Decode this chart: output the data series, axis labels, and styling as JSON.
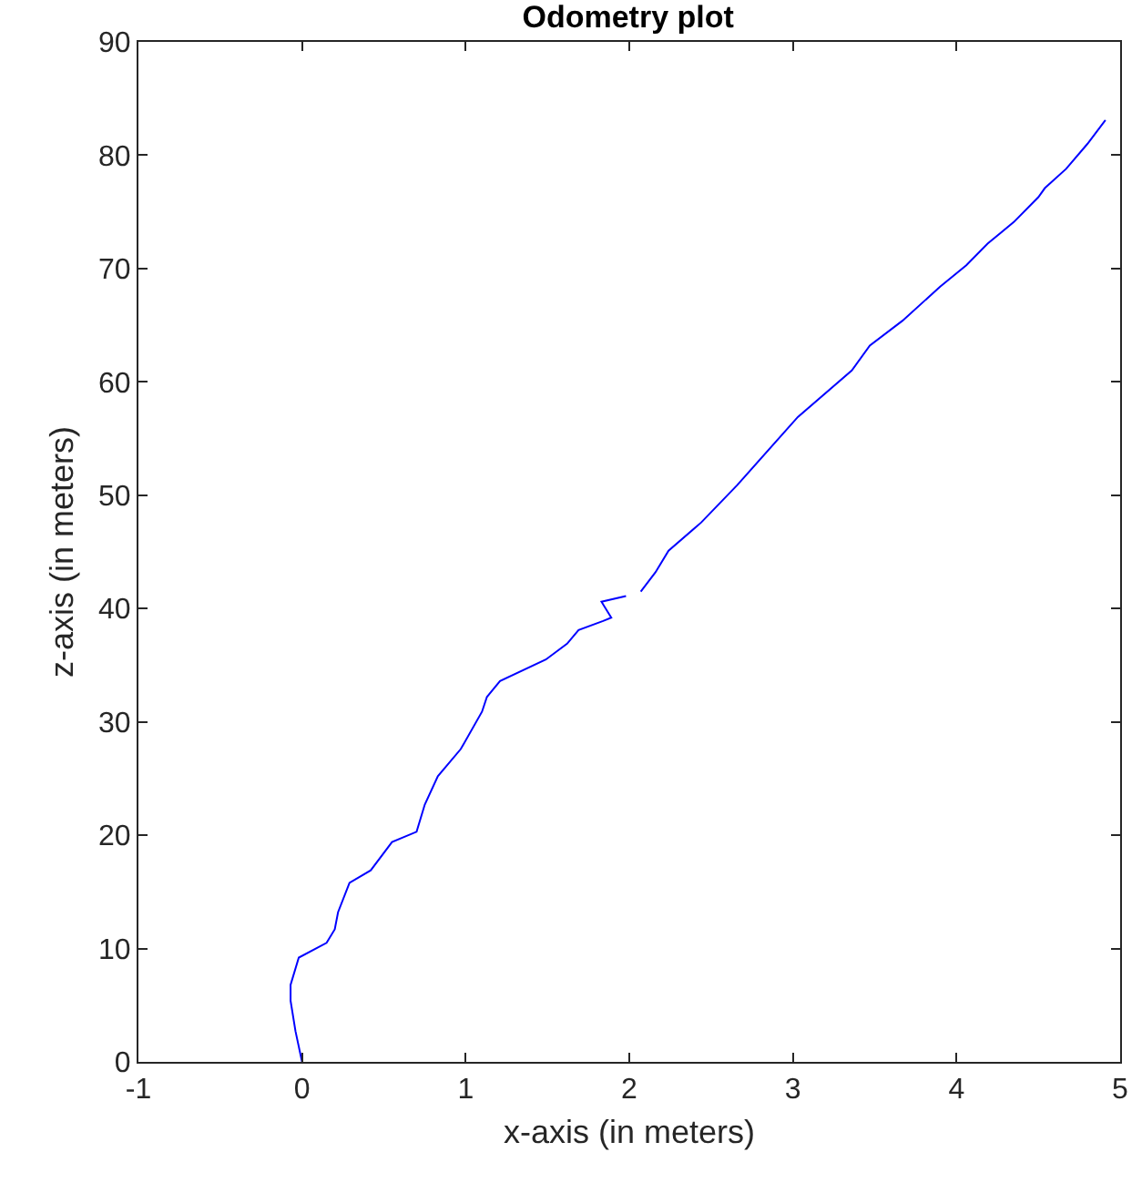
{
  "chart_data": {
    "type": "line",
    "title": "Odometry plot",
    "xlabel": "x-axis (in meters)",
    "ylabel": "z-axis (in meters)",
    "series": [
      {
        "color": "#0000ff",
        "x": [
          0,
          -0.04,
          -0.07,
          -0.07,
          -0.02,
          0.15,
          0.2,
          0.22,
          0.29,
          0.42,
          0.55,
          0.7,
          0.75,
          0.83,
          0.97,
          1.1,
          1.13,
          1.21,
          1.49,
          1.62,
          1.69,
          1.84,
          1.89,
          1.83,
          1.98,
          null,
          2.07,
          2.16,
          2.24,
          2.44,
          2.66,
          3.03,
          3.36,
          3.47,
          3.67,
          3.9,
          4.06,
          4.19,
          4.35,
          4.5,
          4.54,
          4.67,
          4.8,
          4.91
        ],
        "values": [
          0,
          2.7,
          5.4,
          6.8,
          9.2,
          10.5,
          11.7,
          13.2,
          15.8,
          16.9,
          19.4,
          20.3,
          22.7,
          25.2,
          27.6,
          30.9,
          32.2,
          33.6,
          35.5,
          36.9,
          38.1,
          38.9,
          39.2,
          40.6,
          41.1,
          null,
          41.5,
          43.2,
          45.1,
          47.6,
          50.9,
          56.9,
          61.0,
          63.2,
          65.4,
          68.4,
          70.3,
          72.2,
          74.1,
          76.3,
          77.1,
          78.8,
          81.0,
          83.1
        ]
      }
    ],
    "xlim": [
      -1,
      5
    ],
    "xticks": [
      -1,
      0,
      1,
      2,
      3,
      4,
      5
    ],
    "ylim": [
      0,
      90
    ],
    "yticks": [
      0,
      10,
      20,
      30,
      40,
      50,
      60,
      70,
      80,
      90
    ],
    "grid": false,
    "marker": "none",
    "line_style": "solid"
  }
}
